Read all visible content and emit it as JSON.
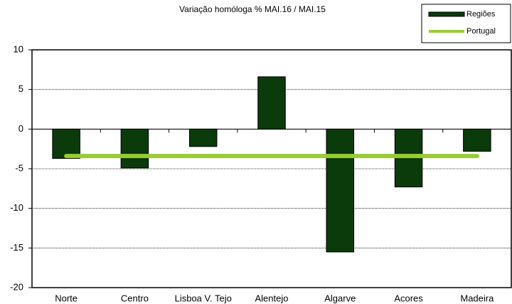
{
  "chart_data": {
    "type": "bar",
    "title": "Variação homóloga %   MAI.16 / MAI.15",
    "categories": [
      "Norte",
      "Centro",
      "Lisboa V. Tejo",
      "Alentejo",
      "Algarve",
      "Acores",
      "Madeira"
    ],
    "series": [
      {
        "name": "Regiões",
        "type": "bar",
        "color": "#0b3a0b",
        "values": [
          -3.7,
          -4.9,
          -2.2,
          6.6,
          -15.5,
          -7.3,
          -2.8
        ]
      },
      {
        "name": "Portugal",
        "type": "line",
        "color": "#99cc33",
        "values": [
          -3.4,
          -3.4,
          -3.4,
          -3.4,
          -3.4,
          -3.4,
          -3.4
        ]
      }
    ],
    "ylim": [
      -20,
      10
    ],
    "yticks": [
      10,
      5,
      0,
      -5,
      -10,
      -15,
      -20
    ],
    "grid": true,
    "legend": "top-right"
  }
}
